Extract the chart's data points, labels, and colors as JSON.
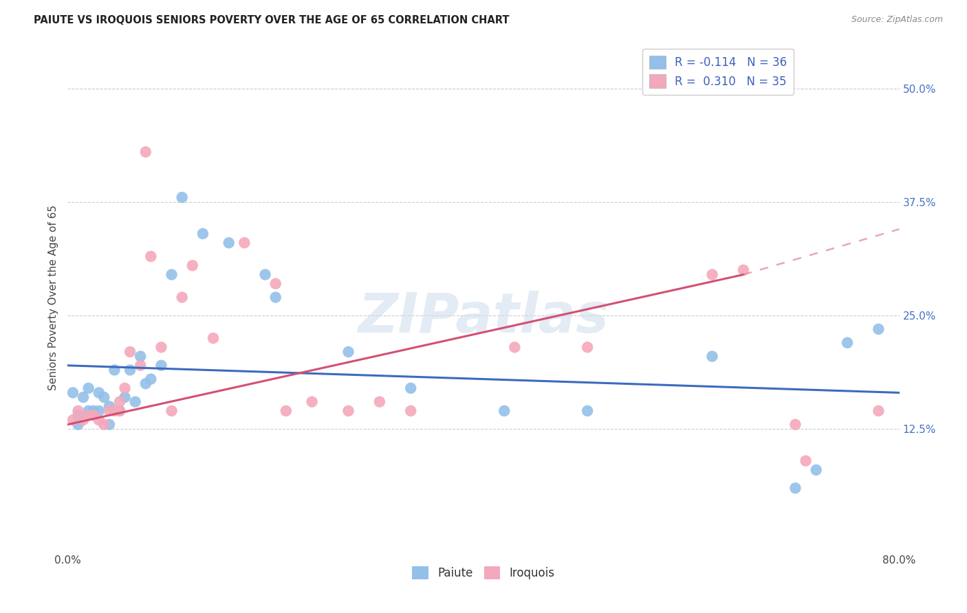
{
  "title": "PAIUTE VS IROQUOIS SENIORS POVERTY OVER THE AGE OF 65 CORRELATION CHART",
  "source": "Source: ZipAtlas.com",
  "ylabel": "Seniors Poverty Over the Age of 65",
  "paiute_R": -0.114,
  "paiute_N": 36,
  "iroquois_R": 0.31,
  "iroquois_N": 35,
  "paiute_color": "#92c0e8",
  "iroquois_color": "#f4a8bb",
  "paiute_line_color": "#3a6bbf",
  "iroquois_line_color": "#d44f72",
  "iroquois_dash_color": "#e08098",
  "watermark": "ZIPatlas",
  "watermark_color": "#ccdded",
  "background_color": "#ffffff",
  "grid_color": "#cccccc",
  "legend_text_color": "#4060bb",
  "right_tick_color": "#4472c4",
  "paiute_x": [
    0.005,
    0.01,
    0.01,
    0.015,
    0.02,
    0.02,
    0.025,
    0.03,
    0.03,
    0.035,
    0.04,
    0.04,
    0.045,
    0.05,
    0.055,
    0.06,
    0.065,
    0.07,
    0.075,
    0.08,
    0.09,
    0.1,
    0.11,
    0.13,
    0.155,
    0.19,
    0.2,
    0.27,
    0.33,
    0.42,
    0.5,
    0.62,
    0.7,
    0.72,
    0.75,
    0.78
  ],
  "paiute_y": [
    0.165,
    0.14,
    0.13,
    0.16,
    0.17,
    0.145,
    0.145,
    0.165,
    0.145,
    0.16,
    0.13,
    0.15,
    0.19,
    0.145,
    0.16,
    0.19,
    0.155,
    0.205,
    0.175,
    0.18,
    0.195,
    0.295,
    0.38,
    0.34,
    0.33,
    0.295,
    0.27,
    0.21,
    0.17,
    0.145,
    0.145,
    0.205,
    0.06,
    0.08,
    0.22,
    0.235
  ],
  "iroquois_x": [
    0.005,
    0.01,
    0.015,
    0.02,
    0.025,
    0.03,
    0.035,
    0.04,
    0.045,
    0.05,
    0.05,
    0.055,
    0.06,
    0.07,
    0.075,
    0.08,
    0.09,
    0.1,
    0.11,
    0.12,
    0.14,
    0.17,
    0.2,
    0.21,
    0.235,
    0.27,
    0.3,
    0.33,
    0.43,
    0.5,
    0.62,
    0.65,
    0.7,
    0.71,
    0.78
  ],
  "iroquois_y": [
    0.135,
    0.145,
    0.135,
    0.14,
    0.14,
    0.135,
    0.13,
    0.145,
    0.145,
    0.145,
    0.155,
    0.17,
    0.21,
    0.195,
    0.43,
    0.315,
    0.215,
    0.145,
    0.27,
    0.305,
    0.225,
    0.33,
    0.285,
    0.145,
    0.155,
    0.145,
    0.155,
    0.145,
    0.215,
    0.215,
    0.295,
    0.3,
    0.13,
    0.09,
    0.145
  ],
  "xlim": [
    0.0,
    0.8
  ],
  "ylim": [
    -0.01,
    0.55
  ],
  "xtick_positions": [
    0.0,
    0.1,
    0.2,
    0.3,
    0.4,
    0.5,
    0.6,
    0.7,
    0.8
  ],
  "xtick_labels": [
    "0.0%",
    "",
    "",
    "",
    "",
    "",
    "",
    "",
    "80.0%"
  ],
  "ytick_positions": [
    0.125,
    0.25,
    0.375,
    0.5
  ],
  "ytick_labels": [
    "12.5%",
    "25.0%",
    "37.5%",
    "50.0%"
  ],
  "paiute_trend": [
    0.1975,
    -0.025
  ],
  "iroquois_trend": [
    0.13,
    0.175
  ]
}
